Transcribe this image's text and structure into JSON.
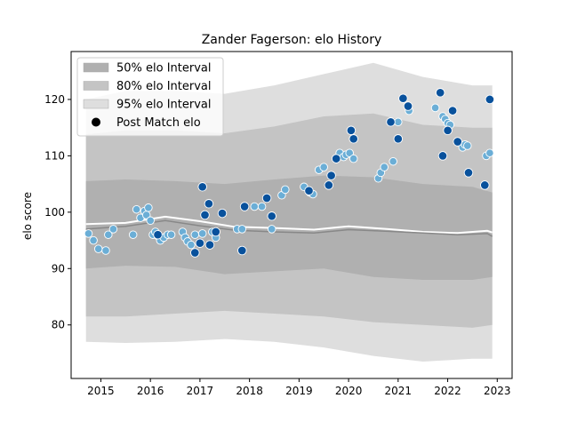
{
  "chart_data": {
    "type": "scatter",
    "title": "Zander Fagerson: elo History",
    "xlabel": "",
    "ylabel": "elo score",
    "xlim": [
      2014.4,
      2023.3
    ],
    "ylim": [
      70.5,
      128.5
    ],
    "xticks": [
      2015,
      2016,
      2017,
      2018,
      2019,
      2020,
      2021,
      2022,
      2023
    ],
    "yticks": [
      80,
      90,
      100,
      110,
      120
    ],
    "grid": false,
    "legend_position": "top-left",
    "legend": [
      {
        "label": "50% elo Interval",
        "kind": "patch",
        "color": "#b0b0b0"
      },
      {
        "label": "80% elo Interval",
        "kind": "patch",
        "color": "#c4c4c4"
      },
      {
        "label": "95% elo Interval",
        "kind": "patch",
        "color": "#dedede"
      },
      {
        "label": "Post Match elo",
        "kind": "marker",
        "color": "#000000"
      }
    ],
    "colors": {
      "dark_points": "#08519c",
      "light_points": "#6baed6",
      "mean_line": "#888888",
      "median_line": "#ffffff"
    },
    "bands": {
      "x": [
        2014.7,
        2015.5,
        2016.5,
        2017.5,
        2018.5,
        2019.5,
        2020.5,
        2021.5,
        2022.5,
        2022.9
      ],
      "p50": {
        "lower": [
          90.0,
          90.5,
          90.3,
          89.0,
          89.5,
          90.0,
          88.5,
          88.0,
          88.0,
          88.5
        ],
        "upper": [
          105.5,
          105.8,
          105.5,
          105.0,
          105.8,
          106.5,
          106.2,
          105.0,
          104.5,
          103.5
        ]
      },
      "p80": {
        "lower": [
          81.5,
          81.5,
          82.0,
          82.5,
          82.0,
          81.5,
          80.5,
          80.0,
          79.5,
          80.0
        ],
        "upper": [
          113.8,
          114.5,
          114.5,
          114.0,
          115.2,
          117.0,
          117.5,
          115.5,
          115.0,
          115.0
        ]
      },
      "p95": {
        "lower": [
          77.0,
          76.8,
          77.0,
          77.5,
          77.0,
          76.0,
          74.5,
          73.5,
          74.0,
          74.0
        ],
        "upper": [
          120.0,
          121.5,
          121.5,
          121.0,
          122.5,
          124.5,
          126.5,
          124.0,
          122.5,
          122.5
        ]
      }
    },
    "series": [
      {
        "role": "mean",
        "x": [
          2014.7,
          2015.5,
          2016.3,
          2017.0,
          2017.7,
          2018.5,
          2019.3,
          2020.0,
          2020.8,
          2021.5,
          2022.2,
          2022.8,
          2022.9
        ],
        "y": [
          97.0,
          97.5,
          98.5,
          97.6,
          96.8,
          96.5,
          96.3,
          96.9,
          96.6,
          96.3,
          96.0,
          96.2,
          95.7
        ]
      },
      {
        "role": "median",
        "x": [
          2014.7,
          2015.5,
          2016.3,
          2017.0,
          2017.7,
          2018.5,
          2019.3,
          2020.0,
          2020.8,
          2021.5,
          2022.2,
          2022.8,
          2022.9
        ],
        "y": [
          97.9,
          98.1,
          99.2,
          98.4,
          97.4,
          97.2,
          96.9,
          97.5,
          97.0,
          96.5,
          96.3,
          96.7,
          96.4
        ]
      },
      {
        "role": "light_points",
        "x": [
          2014.75,
          2014.85,
          2014.95,
          2015.1,
          2015.15,
          2015.25,
          2015.65,
          2015.72,
          2015.8,
          2015.88,
          2015.92,
          2015.96,
          2016.0,
          2016.05,
          2016.1,
          2016.15,
          2016.2,
          2016.27,
          2016.35,
          2016.42,
          2016.65,
          2016.7,
          2016.75,
          2016.82,
          2016.9,
          2017.05,
          2017.25,
          2017.32,
          2017.75,
          2017.85,
          2018.1,
          2018.25,
          2018.45,
          2018.65,
          2018.72,
          2019.1,
          2019.22,
          2019.28,
          2019.4,
          2019.5,
          2019.75,
          2019.82,
          2019.9,
          2019.95,
          2020.02,
          2020.1,
          2020.6,
          2020.65,
          2020.72,
          2020.9,
          2021.0,
          2021.22,
          2021.75,
          2021.9,
          2021.95,
          2022.0,
          2022.05,
          2022.3,
          2022.35,
          2022.4,
          2022.78,
          2022.85
        ],
        "y": [
          96.2,
          95.0,
          93.5,
          93.2,
          96.0,
          97.0,
          96.0,
          100.5,
          99.0,
          100.2,
          99.5,
          100.8,
          98.5,
          96.0,
          96.5,
          95.8,
          95.0,
          95.5,
          96.0,
          96.0,
          96.5,
          95.5,
          94.8,
          94.2,
          96.0,
          96.2,
          96.5,
          95.5,
          97.0,
          97.0,
          101.0,
          101.0,
          97.0,
          103.0,
          104.0,
          104.5,
          103.5,
          103.2,
          107.5,
          108.0,
          109.5,
          110.5,
          109.8,
          110.2,
          110.5,
          109.5,
          106.0,
          107.0,
          108.0,
          109.0,
          116.0,
          118.0,
          118.5,
          117.0,
          116.5,
          115.8,
          115.5,
          111.5,
          112.0,
          111.8,
          110.0,
          110.5
        ]
      },
      {
        "role": "dark_points",
        "x": [
          2016.15,
          2016.9,
          2017.0,
          2017.05,
          2017.1,
          2017.18,
          2017.2,
          2017.32,
          2017.45,
          2017.85,
          2017.9,
          2018.35,
          2018.45,
          2019.2,
          2019.6,
          2019.65,
          2019.75,
          2020.05,
          2020.1,
          2020.85,
          2021.0,
          2021.1,
          2021.2,
          2021.85,
          2021.9,
          2022.0,
          2022.1,
          2022.2,
          2022.42,
          2022.75,
          2022.85
        ],
        "y": [
          96.0,
          92.8,
          94.5,
          104.5,
          99.5,
          101.5,
          94.2,
          96.5,
          99.8,
          93.2,
          101.0,
          102.5,
          99.3,
          103.8,
          104.8,
          106.5,
          109.5,
          114.5,
          113.0,
          116.0,
          113.0,
          120.2,
          118.8,
          121.2,
          110.0,
          114.5,
          118.0,
          112.5,
          107.0,
          104.8,
          120.0
        ]
      }
    ]
  }
}
